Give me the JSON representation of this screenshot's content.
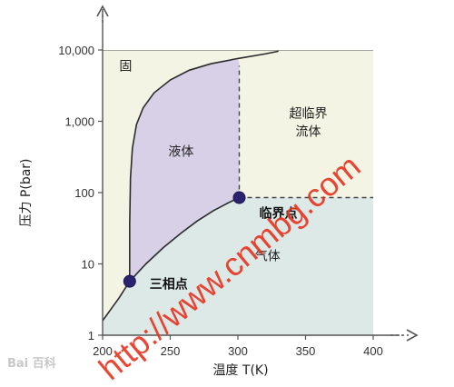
{
  "chart_data": {
    "type": "area",
    "xlabel": "温度 T(K)",
    "ylabel": "压力 P(bar)",
    "x_ticks": [
      "200",
      "250",
      "300",
      "350",
      "400"
    ],
    "y_ticks": [
      "1",
      "10",
      "100",
      "1,000",
      "10,000"
    ],
    "xlim": [
      200,
      400
    ],
    "ylim": [
      1,
      10000
    ],
    "y_scale": "log",
    "grid": false,
    "regions": [
      {
        "key": "solid",
        "label": "固",
        "color": "#f5dfc5",
        "label_at": [
          217,
          6000
        ]
      },
      {
        "key": "liquid",
        "label": "液体",
        "color": "#d7d0e6",
        "label_at": [
          258,
          380
        ]
      },
      {
        "key": "super",
        "label": "超临界流体",
        "color": "#f3f4e4",
        "label_at": [
          352,
          1000
        ]
      },
      {
        "key": "gas",
        "label": "气体",
        "color": "#dde9e7",
        "label_at": [
          322,
          13
        ]
      }
    ],
    "curves": [
      {
        "name": "sublimation",
        "points": [
          [
            200,
            1.6
          ],
          [
            212,
            3.3
          ],
          [
            220,
            5.7
          ]
        ]
      },
      {
        "name": "vaporization",
        "points": [
          [
            220,
            5.7
          ],
          [
            232,
            10
          ],
          [
            245,
            17
          ],
          [
            258,
            27
          ],
          [
            270,
            40
          ],
          [
            282,
            56
          ],
          [
            293,
            72
          ],
          [
            301,
            85
          ]
        ]
      },
      {
        "name": "melting",
        "points": [
          [
            220,
            5.7
          ],
          [
            220,
            35
          ],
          [
            220.6,
            160
          ],
          [
            222,
            420
          ],
          [
            225,
            900
          ],
          [
            230,
            1550
          ],
          [
            238,
            2500
          ],
          [
            250,
            3800
          ],
          [
            264,
            5200
          ],
          [
            280,
            6400
          ],
          [
            300,
            7600
          ],
          [
            320,
            8800
          ],
          [
            330,
            9600
          ]
        ]
      }
    ],
    "boundaries": [
      {
        "style": "dashed",
        "points": [
          [
            301,
            85
          ],
          [
            301,
            6000
          ]
        ]
      },
      {
        "style": "dashed",
        "points": [
          [
            301,
            85
          ],
          [
            400,
            85
          ]
        ]
      }
    ],
    "points": [
      {
        "key": "triple",
        "label": "三相点",
        "x": 220,
        "y": 5.7,
        "color": "#2a2470"
      },
      {
        "key": "critical",
        "label": "临界点",
        "x": 301,
        "y": 85,
        "color": "#2a2470"
      }
    ]
  },
  "watermark": {
    "text": "http://www.cnmbg.com",
    "color": "#e8321e",
    "logo_text": "Bai 百科"
  }
}
